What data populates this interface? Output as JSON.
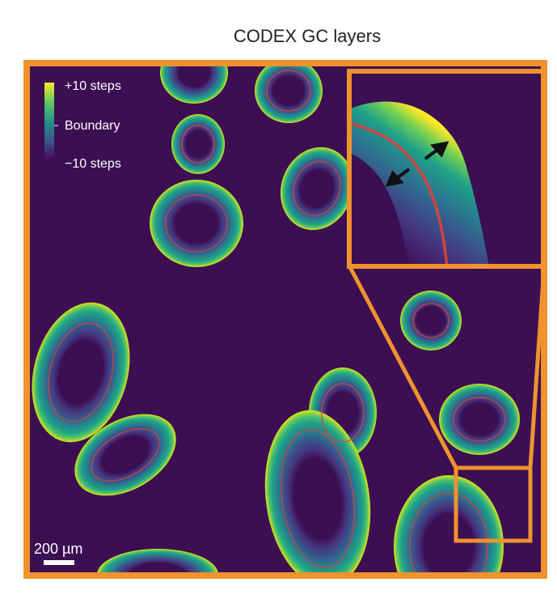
{
  "title": "CODEX GC layers",
  "legend": {
    "top_label": "+10 steps",
    "mid_label": "Boundary",
    "bottom_label": "−10 steps"
  },
  "scale_bar": {
    "label": "200 µm"
  },
  "colors": {
    "background": "#3b0f52",
    "frame": "#f0922e",
    "boundary": "#d0453f",
    "viridis_low": "#46327e",
    "viridis_mid": "#21918c",
    "viridis_high": "#fde725"
  }
}
